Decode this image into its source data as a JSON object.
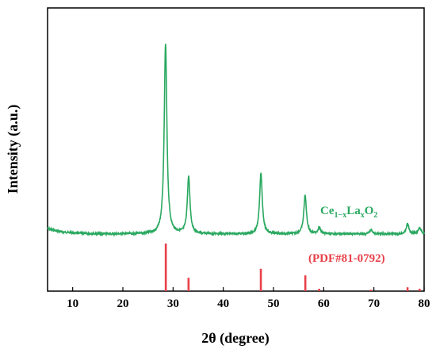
{
  "chart_data": {
    "type": "line",
    "title": "",
    "xlabel": "2θ (degree)",
    "ylabel": "Intensity (a.u.)",
    "xlim": [
      5,
      80
    ],
    "x_ticks": [
      10,
      20,
      30,
      40,
      50,
      60,
      70,
      80
    ],
    "y_ticks_shown": false,
    "grid": false,
    "series": [
      {
        "formula_main": "Ce",
        "formula_sub1": "1−x",
        "formula_main2": "La",
        "formula_sub2": "x",
        "formula_main3": "O",
        "formula_sub3": "2",
        "color": "#2aa860",
        "peaks": [
          {
            "x": 28.5,
            "height": 0.94
          },
          {
            "x": 33.1,
            "height": 0.28
          },
          {
            "x": 47.5,
            "height": 0.3
          },
          {
            "x": 56.3,
            "height": 0.19
          },
          {
            "x": 59.1,
            "height": 0.03
          },
          {
            "x": 69.4,
            "height": 0.02
          },
          {
            "x": 76.7,
            "height": 0.05
          },
          {
            "x": 79.1,
            "height": 0.03
          }
        ]
      },
      {
        "label": "(PDF#81-0792)",
        "color": "#e8404a",
        "type": "reference-sticks",
        "x": [
          28.55,
          33.08,
          47.48,
          56.34,
          59.1,
          69.4,
          76.7,
          79.1
        ],
        "relative_intensity": [
          1.0,
          0.28,
          0.47,
          0.33,
          0.05,
          0.03,
          0.08,
          0.05
        ]
      }
    ]
  }
}
